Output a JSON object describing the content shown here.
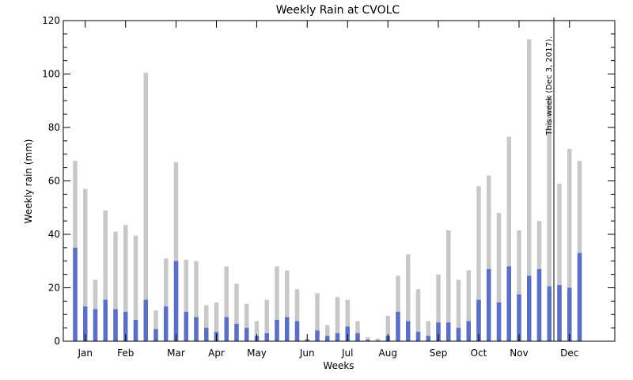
{
  "chart_data": {
    "type": "bar",
    "title": "Weekly Rain at CVOLC",
    "xlabel": "Weeks",
    "ylabel": "Weekly rain (mm)",
    "ylim": [
      0,
      120
    ],
    "yticks": [
      0,
      20,
      40,
      60,
      80,
      100,
      120
    ],
    "grid": false,
    "months": [
      "Jan",
      "Feb",
      "Mar",
      "Apr",
      "May",
      "Jun",
      "Jul",
      "Aug",
      "Sep",
      "Oct",
      "Nov",
      "Dec"
    ],
    "month_week_index": [
      1,
      5,
      10,
      14,
      18,
      23,
      27,
      31,
      36,
      40,
      44,
      49
    ],
    "series": [
      {
        "role": "background",
        "color": "#c8c8c8",
        "values": [
          67.5,
          57,
          23,
          49,
          41,
          43.5,
          39.5,
          100.5,
          11.5,
          31,
          67,
          30.5,
          30,
          13.5,
          14.5,
          28,
          21.5,
          14,
          7.5,
          15.5,
          28,
          26.5,
          19.5,
          1,
          18,
          6,
          16.5,
          15.5,
          7.5,
          1.5,
          1,
          9.5,
          24.5,
          32.5,
          19.5,
          7.5,
          25,
          41.5,
          23,
          26.5,
          58,
          62,
          48,
          76.5,
          41.5,
          113,
          45,
          92,
          59,
          72,
          67.5
        ]
      },
      {
        "role": "foreground",
        "color": "#5b6fc4",
        "values": [
          35,
          13,
          12,
          15.5,
          12,
          11,
          8,
          15.5,
          4.5,
          13,
          30,
          11,
          9,
          5,
          3.5,
          9,
          6.5,
          5,
          2,
          3,
          8,
          9,
          7.5,
          0.5,
          4,
          2,
          3,
          5.5,
          3,
          0.5,
          0.3,
          2,
          11,
          7.5,
          3.5,
          2,
          7,
          7,
          5,
          7.5,
          15.5,
          27,
          14.5,
          28,
          17.5,
          24.5,
          27,
          20.5,
          21,
          20,
          33
        ]
      }
    ],
    "annotation": {
      "text": "This week (Dec 3, 2017).",
      "week_index": 48
    }
  }
}
